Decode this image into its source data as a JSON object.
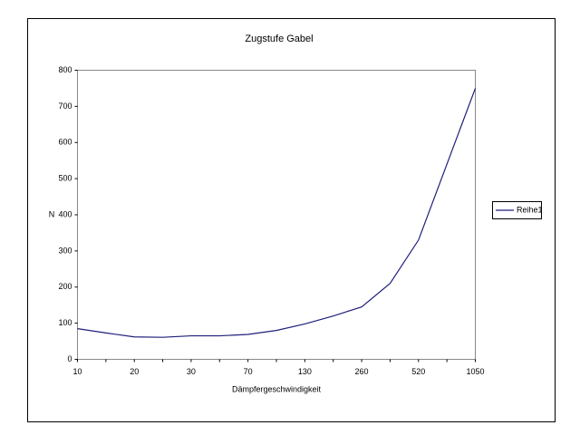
{
  "chart_data": {
    "type": "line",
    "title": "Zugstufe Gabel",
    "x_label": "Dämpfergeschwindigkeit",
    "y_label": "N",
    "categories": [
      "10",
      null,
      "20",
      null,
      "30",
      null,
      "70",
      null,
      "130",
      null,
      "260",
      null,
      "520",
      null,
      "1050"
    ],
    "series": [
      {
        "name": "Reihe1",
        "color": "#1f1f7a",
        "values": [
          85,
          73,
          62,
          61,
          65,
          65,
          69,
          80,
          98,
          120,
          145,
          210,
          330,
          540,
          750
        ]
      }
    ],
    "ylim": [
      0,
      800
    ],
    "yticks": [
      0,
      100,
      200,
      300,
      400,
      500,
      600,
      700,
      800
    ],
    "grid": false,
    "legend": "right"
  }
}
